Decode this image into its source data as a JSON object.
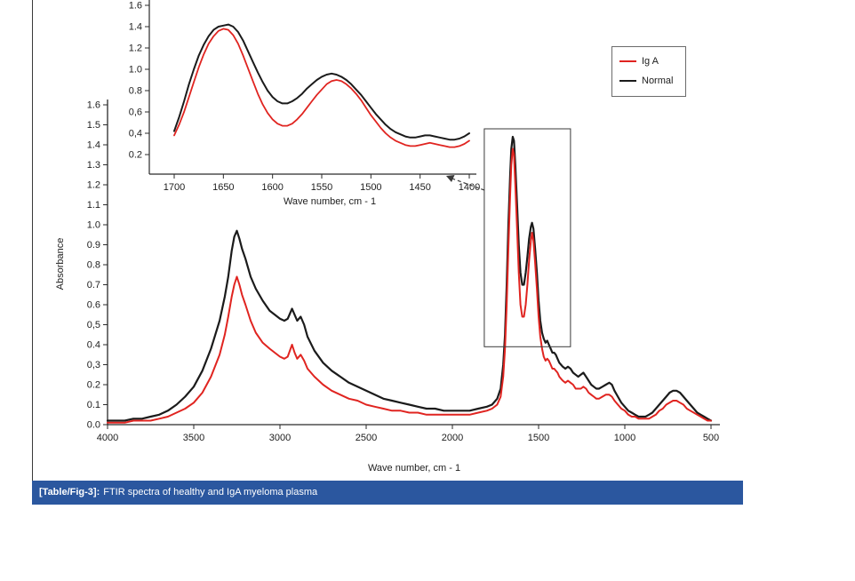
{
  "figure": {
    "caption_tag": "[Table/Fig-3]:",
    "caption_text": "FTIR spectra of healthy and IgA myeloma plasma",
    "caption_bg": "#2b579f"
  },
  "legend": {
    "items": [
      {
        "label": "Ig A",
        "color": "#e02420"
      },
      {
        "label": "Normal",
        "color": "#1b1b1b"
      }
    ]
  },
  "chart_data": [
    {
      "id": "main",
      "type": "line",
      "title": "",
      "xlabel": "Wave number, cm - 1",
      "ylabel": "Absorbance",
      "xlim": [
        4000,
        500
      ],
      "ylim": [
        0,
        1.6
      ],
      "x_axis_reversed": true,
      "grid": false,
      "legend_position": "top-right",
      "x_ticks": {
        "values": [
          4000,
          3500,
          3000,
          2500,
          2000,
          1500,
          1000,
          500
        ],
        "labels": [
          "4000",
          "3500",
          "3000",
          "2500",
          "2000",
          "1500",
          "1000",
          "500"
        ]
      },
      "y_ticks": {
        "values": [
          0,
          0.1,
          0.2,
          0.3,
          0.4,
          0.5,
          0.6,
          0.7,
          0.8,
          0.9,
          1.0,
          1.1,
          1.2,
          1.3,
          1.4,
          1.5,
          1.6
        ],
        "labels": [
          "0.0",
          "0.1",
          "0.2",
          "0,3",
          "0.4",
          "0,5",
          "0.6",
          "0.7",
          "0.8",
          "0.9",
          "1.0",
          "1.1",
          "1.2",
          "1.3",
          "1.4",
          "1.5",
          "1.6"
        ]
      },
      "annotation_box": {
        "x0": 1815,
        "x1": 1315,
        "y0": 0.39,
        "y1": 1.48
      },
      "series": [
        {
          "name": "Normal",
          "color": "#1b1b1b",
          "width": 2.2,
          "x": [
            4000,
            3950,
            3900,
            3850,
            3800,
            3750,
            3700,
            3650,
            3600,
            3550,
            3500,
            3450,
            3400,
            3350,
            3320,
            3300,
            3280,
            3265,
            3250,
            3235,
            3220,
            3200,
            3170,
            3140,
            3100,
            3060,
            3030,
            3000,
            2975,
            2955,
            2930,
            2915,
            2900,
            2880,
            2860,
            2840,
            2800,
            2750,
            2700,
            2650,
            2600,
            2550,
            2500,
            2450,
            2400,
            2350,
            2300,
            2250,
            2200,
            2150,
            2100,
            2050,
            2000,
            1950,
            1900,
            1850,
            1800,
            1770,
            1740,
            1720,
            1705,
            1695,
            1685,
            1675,
            1665,
            1658,
            1650,
            1643,
            1635,
            1625,
            1615,
            1605,
            1595,
            1585,
            1575,
            1565,
            1555,
            1545,
            1538,
            1530,
            1520,
            1510,
            1500,
            1490,
            1480,
            1470,
            1460,
            1450,
            1440,
            1430,
            1420,
            1410,
            1400,
            1390,
            1380,
            1370,
            1360,
            1345,
            1330,
            1315,
            1300,
            1285,
            1270,
            1255,
            1240,
            1225,
            1210,
            1195,
            1180,
            1165,
            1150,
            1130,
            1110,
            1090,
            1075,
            1060,
            1040,
            1020,
            1000,
            980,
            960,
            940,
            920,
            900,
            880,
            860,
            840,
            820,
            800,
            780,
            760,
            740,
            720,
            700,
            680,
            660,
            640,
            620,
            600,
            580,
            560,
            540,
            520,
            500
          ],
          "y": [
            0.02,
            0.02,
            0.02,
            0.03,
            0.03,
            0.04,
            0.05,
            0.07,
            0.1,
            0.14,
            0.19,
            0.27,
            0.38,
            0.52,
            0.64,
            0.74,
            0.87,
            0.94,
            0.97,
            0.93,
            0.88,
            0.83,
            0.74,
            0.68,
            0.62,
            0.57,
            0.55,
            0.53,
            0.52,
            0.53,
            0.58,
            0.55,
            0.52,
            0.54,
            0.5,
            0.44,
            0.37,
            0.31,
            0.27,
            0.24,
            0.21,
            0.19,
            0.17,
            0.15,
            0.13,
            0.12,
            0.11,
            0.1,
            0.09,
            0.08,
            0.08,
            0.07,
            0.07,
            0.07,
            0.07,
            0.08,
            0.09,
            0.1,
            0.13,
            0.18,
            0.3,
            0.45,
            0.7,
            1.0,
            1.25,
            1.38,
            1.44,
            1.42,
            1.3,
            1.1,
            0.9,
            0.76,
            0.7,
            0.7,
            0.76,
            0.84,
            0.93,
            0.99,
            1.01,
            0.98,
            0.88,
            0.76,
            0.62,
            0.52,
            0.46,
            0.43,
            0.41,
            0.42,
            0.4,
            0.38,
            0.36,
            0.36,
            0.35,
            0.33,
            0.31,
            0.3,
            0.29,
            0.28,
            0.29,
            0.28,
            0.26,
            0.25,
            0.24,
            0.25,
            0.26,
            0.24,
            0.22,
            0.2,
            0.19,
            0.18,
            0.18,
            0.19,
            0.2,
            0.21,
            0.2,
            0.17,
            0.14,
            0.11,
            0.09,
            0.07,
            0.06,
            0.05,
            0.04,
            0.04,
            0.04,
            0.05,
            0.06,
            0.08,
            0.1,
            0.12,
            0.14,
            0.16,
            0.17,
            0.17,
            0.16,
            0.14,
            0.12,
            0.1,
            0.08,
            0.06,
            0.05,
            0.04,
            0.03,
            0.02
          ]
        },
        {
          "name": "Ig A",
          "color": "#e02420",
          "width": 2.0,
          "x": [
            4000,
            3950,
            3900,
            3850,
            3800,
            3750,
            3700,
            3650,
            3600,
            3550,
            3500,
            3450,
            3400,
            3350,
            3320,
            3300,
            3280,
            3265,
            3250,
            3235,
            3220,
            3200,
            3170,
            3140,
            3100,
            3060,
            3030,
            3000,
            2975,
            2955,
            2930,
            2915,
            2900,
            2880,
            2860,
            2840,
            2800,
            2750,
            2700,
            2650,
            2600,
            2550,
            2500,
            2450,
            2400,
            2350,
            2300,
            2250,
            2200,
            2150,
            2100,
            2050,
            2000,
            1950,
            1900,
            1850,
            1800,
            1770,
            1740,
            1720,
            1705,
            1695,
            1685,
            1675,
            1665,
            1658,
            1650,
            1643,
            1635,
            1625,
            1615,
            1605,
            1595,
            1585,
            1575,
            1565,
            1555,
            1545,
            1538,
            1530,
            1520,
            1510,
            1500,
            1490,
            1480,
            1470,
            1460,
            1450,
            1440,
            1430,
            1420,
            1410,
            1400,
            1390,
            1380,
            1370,
            1360,
            1345,
            1330,
            1315,
            1300,
            1285,
            1270,
            1255,
            1240,
            1225,
            1210,
            1195,
            1180,
            1165,
            1150,
            1130,
            1110,
            1090,
            1075,
            1060,
            1040,
            1020,
            1000,
            980,
            960,
            940,
            920,
            900,
            880,
            860,
            840,
            820,
            800,
            780,
            760,
            740,
            720,
            700,
            680,
            660,
            640,
            620,
            600,
            580,
            560,
            540,
            520,
            500
          ],
          "y": [
            0.01,
            0.01,
            0.01,
            0.02,
            0.02,
            0.02,
            0.03,
            0.04,
            0.06,
            0.08,
            0.11,
            0.16,
            0.24,
            0.35,
            0.45,
            0.54,
            0.64,
            0.7,
            0.74,
            0.7,
            0.65,
            0.6,
            0.52,
            0.46,
            0.41,
            0.38,
            0.36,
            0.34,
            0.33,
            0.34,
            0.4,
            0.36,
            0.33,
            0.35,
            0.32,
            0.28,
            0.24,
            0.2,
            0.17,
            0.15,
            0.13,
            0.12,
            0.1,
            0.09,
            0.08,
            0.07,
            0.07,
            0.06,
            0.06,
            0.05,
            0.05,
            0.05,
            0.05,
            0.05,
            0.05,
            0.06,
            0.07,
            0.08,
            0.1,
            0.14,
            0.24,
            0.38,
            0.6,
            0.88,
            1.15,
            1.3,
            1.38,
            1.35,
            1.2,
            0.98,
            0.76,
            0.6,
            0.54,
            0.54,
            0.6,
            0.7,
            0.82,
            0.92,
            0.96,
            0.92,
            0.81,
            0.68,
            0.54,
            0.44,
            0.38,
            0.34,
            0.32,
            0.33,
            0.32,
            0.3,
            0.28,
            0.28,
            0.27,
            0.26,
            0.24,
            0.23,
            0.22,
            0.21,
            0.22,
            0.21,
            0.2,
            0.18,
            0.18,
            0.18,
            0.19,
            0.18,
            0.16,
            0.15,
            0.14,
            0.13,
            0.13,
            0.14,
            0.15,
            0.15,
            0.14,
            0.12,
            0.1,
            0.08,
            0.07,
            0.05,
            0.04,
            0.04,
            0.03,
            0.03,
            0.03,
            0.03,
            0.04,
            0.05,
            0.07,
            0.08,
            0.1,
            0.11,
            0.12,
            0.12,
            0.11,
            0.1,
            0.08,
            0.07,
            0.06,
            0.05,
            0.04,
            0.03,
            0.02,
            0.02
          ]
        }
      ]
    },
    {
      "id": "inset",
      "type": "line",
      "title": "",
      "xlabel": "Wave number, cm - 1",
      "ylabel": "",
      "xlim": [
        1700,
        1400
      ],
      "ylim": [
        0,
        1.65
      ],
      "x_axis_reversed": true,
      "grid": false,
      "x_ticks": {
        "values": [
          1700,
          1650,
          1600,
          1550,
          1500,
          1450,
          1400
        ],
        "labels": [
          "1700",
          "1650",
          "1600",
          "1550",
          "1500",
          "1450",
          "1400"
        ]
      },
      "y_ticks": {
        "values": [
          0.2,
          0.4,
          0.6,
          0.8,
          1.0,
          1.2,
          1.4,
          1.6
        ],
        "labels": [
          "0.2",
          "0,4",
          "0,6",
          "0.8",
          "1.0",
          "1.2",
          "1.4",
          "1.6"
        ]
      },
      "series": [
        {
          "name": "Normal",
          "color": "#1b1b1b",
          "width": 2.0,
          "x": [
            1700,
            1695,
            1690,
            1685,
            1680,
            1675,
            1670,
            1665,
            1660,
            1655,
            1650,
            1645,
            1640,
            1635,
            1630,
            1625,
            1620,
            1615,
            1610,
            1605,
            1600,
            1595,
            1590,
            1585,
            1580,
            1575,
            1570,
            1565,
            1560,
            1555,
            1550,
            1545,
            1540,
            1535,
            1530,
            1525,
            1520,
            1515,
            1510,
            1505,
            1500,
            1495,
            1490,
            1485,
            1480,
            1475,
            1470,
            1465,
            1460,
            1455,
            1450,
            1445,
            1440,
            1435,
            1430,
            1425,
            1420,
            1415,
            1410,
            1405,
            1400
          ],
          "y": [
            0.42,
            0.55,
            0.7,
            0.86,
            1.0,
            1.13,
            1.23,
            1.31,
            1.37,
            1.4,
            1.41,
            1.42,
            1.4,
            1.35,
            1.27,
            1.17,
            1.07,
            0.97,
            0.88,
            0.8,
            0.74,
            0.7,
            0.68,
            0.68,
            0.7,
            0.73,
            0.77,
            0.82,
            0.86,
            0.9,
            0.93,
            0.95,
            0.96,
            0.95,
            0.93,
            0.9,
            0.86,
            0.81,
            0.76,
            0.7,
            0.64,
            0.58,
            0.53,
            0.48,
            0.44,
            0.41,
            0.39,
            0.37,
            0.36,
            0.36,
            0.37,
            0.38,
            0.38,
            0.37,
            0.36,
            0.35,
            0.34,
            0.34,
            0.35,
            0.37,
            0.4
          ]
        },
        {
          "name": "Ig A",
          "color": "#e02420",
          "width": 1.8,
          "x": [
            1700,
            1695,
            1690,
            1685,
            1680,
            1675,
            1670,
            1665,
            1660,
            1655,
            1650,
            1645,
            1640,
            1635,
            1630,
            1625,
            1620,
            1615,
            1610,
            1605,
            1600,
            1595,
            1590,
            1585,
            1580,
            1575,
            1570,
            1565,
            1560,
            1555,
            1550,
            1545,
            1540,
            1535,
            1530,
            1525,
            1520,
            1515,
            1510,
            1505,
            1500,
            1495,
            1490,
            1485,
            1480,
            1475,
            1470,
            1465,
            1460,
            1455,
            1450,
            1445,
            1440,
            1435,
            1430,
            1425,
            1420,
            1415,
            1410,
            1405,
            1400
          ],
          "y": [
            0.38,
            0.48,
            0.6,
            0.74,
            0.88,
            1.02,
            1.14,
            1.24,
            1.31,
            1.36,
            1.38,
            1.37,
            1.32,
            1.24,
            1.13,
            1.01,
            0.89,
            0.77,
            0.67,
            0.59,
            0.53,
            0.49,
            0.47,
            0.47,
            0.49,
            0.53,
            0.58,
            0.64,
            0.7,
            0.76,
            0.81,
            0.86,
            0.89,
            0.9,
            0.89,
            0.86,
            0.82,
            0.77,
            0.71,
            0.64,
            0.57,
            0.51,
            0.45,
            0.4,
            0.36,
            0.33,
            0.31,
            0.29,
            0.28,
            0.28,
            0.29,
            0.3,
            0.31,
            0.3,
            0.29,
            0.28,
            0.27,
            0.27,
            0.28,
            0.3,
            0.33
          ]
        }
      ]
    }
  ]
}
